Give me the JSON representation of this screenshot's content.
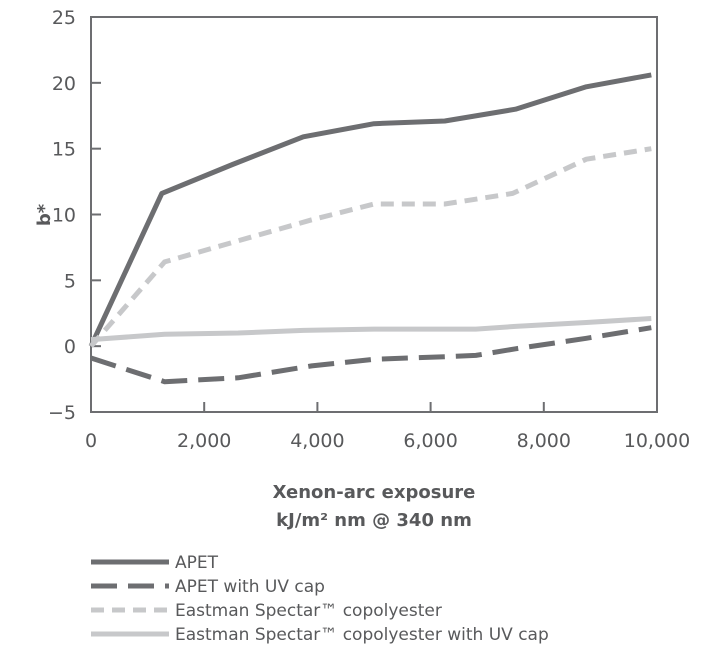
{
  "chart_data": {
    "type": "line",
    "title": "",
    "xlabel_lines": [
      "Xenon-arc exposure",
      "kJ/m² nm @ 340 nm"
    ],
    "ylabel": "b*",
    "xlim": [
      0,
      10000
    ],
    "ylim": [
      -5,
      25
    ],
    "x_ticks": [
      0,
      2000,
      4000,
      6000,
      8000,
      10000
    ],
    "x_tick_labels": [
      "0",
      "2,000",
      "4,000",
      "6,000",
      "8,000",
      "10,000"
    ],
    "y_ticks": [
      -5,
      0,
      5,
      10,
      15,
      20,
      25
    ],
    "y_tick_labels": [
      "−5",
      "0",
      "5",
      "10",
      "15",
      "20",
      "25"
    ],
    "grid": false,
    "legend_position": "bottom",
    "series": [
      {
        "name": "APET",
        "color": "#6d6e71",
        "style": "solid",
        "x": [
          0,
          1250,
          2500,
          3750,
          5000,
          6250,
          7500,
          8750,
          9900
        ],
        "y": [
          0,
          11.6,
          13.8,
          15.9,
          16.9,
          17.1,
          18.0,
          19.7,
          20.6
        ]
      },
      {
        "name": "APET with UV cap",
        "color": "#6d6e71",
        "style": "long-dash",
        "x": [
          0,
          1300,
          2600,
          3900,
          5000,
          6250,
          6800,
          7500,
          8750,
          9900
        ],
        "y": [
          -0.9,
          -2.7,
          -2.4,
          -1.5,
          -1.0,
          -0.8,
          -0.7,
          -0.2,
          0.6,
          1.4
        ]
      },
      {
        "name": "Eastman Spectar™ copolyester",
        "color": "#c7c8ca",
        "style": "short-dash",
        "x": [
          0,
          1300,
          2600,
          3900,
          5000,
          6250,
          7450,
          8750,
          9900
        ],
        "y": [
          0,
          6.4,
          8.0,
          9.6,
          10.8,
          10.8,
          11.6,
          14.2,
          15.0
        ]
      },
      {
        "name": "Eastman Spectar™ copolyester with UV cap",
        "color": "#c7c8ca",
        "style": "solid",
        "x": [
          0,
          1300,
          2600,
          3750,
          5000,
          6250,
          6800,
          7500,
          8750,
          9900
        ],
        "y": [
          0.5,
          0.9,
          1.0,
          1.2,
          1.3,
          1.3,
          1.3,
          1.5,
          1.8,
          2.1
        ]
      }
    ]
  }
}
